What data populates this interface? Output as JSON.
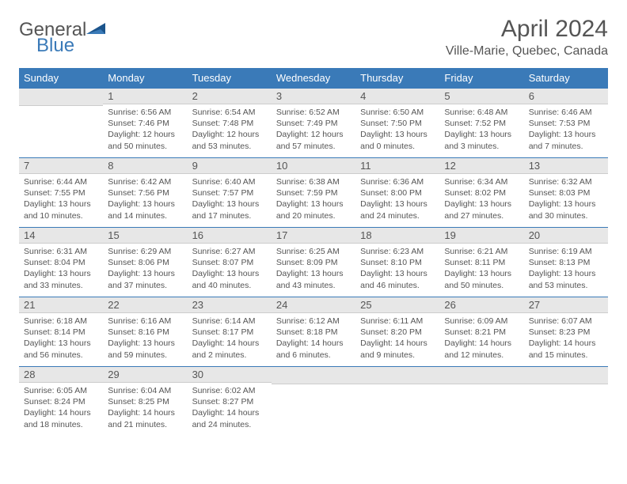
{
  "brand": {
    "general": "General",
    "blue": "Blue"
  },
  "title": "April 2024",
  "location": "Ville-Marie, Quebec, Canada",
  "weekdays": [
    "Sunday",
    "Monday",
    "Tuesday",
    "Wednesday",
    "Thursday",
    "Friday",
    "Saturday"
  ],
  "colors": {
    "header_bg": "#3a7ab8",
    "header_text": "#ffffff",
    "daynum_bg": "#e7e7e7",
    "row_border": "#3a7ab8",
    "text": "#555555"
  },
  "start_offset": 1,
  "days": [
    {
      "n": 1,
      "sunrise": "6:56 AM",
      "sunset": "7:46 PM",
      "dayH": 12,
      "dayM": 50
    },
    {
      "n": 2,
      "sunrise": "6:54 AM",
      "sunset": "7:48 PM",
      "dayH": 12,
      "dayM": 53
    },
    {
      "n": 3,
      "sunrise": "6:52 AM",
      "sunset": "7:49 PM",
      "dayH": 12,
      "dayM": 57
    },
    {
      "n": 4,
      "sunrise": "6:50 AM",
      "sunset": "7:50 PM",
      "dayH": 13,
      "dayM": 0
    },
    {
      "n": 5,
      "sunrise": "6:48 AM",
      "sunset": "7:52 PM",
      "dayH": 13,
      "dayM": 3
    },
    {
      "n": 6,
      "sunrise": "6:46 AM",
      "sunset": "7:53 PM",
      "dayH": 13,
      "dayM": 7
    },
    {
      "n": 7,
      "sunrise": "6:44 AM",
      "sunset": "7:55 PM",
      "dayH": 13,
      "dayM": 10
    },
    {
      "n": 8,
      "sunrise": "6:42 AM",
      "sunset": "7:56 PM",
      "dayH": 13,
      "dayM": 14
    },
    {
      "n": 9,
      "sunrise": "6:40 AM",
      "sunset": "7:57 PM",
      "dayH": 13,
      "dayM": 17
    },
    {
      "n": 10,
      "sunrise": "6:38 AM",
      "sunset": "7:59 PM",
      "dayH": 13,
      "dayM": 20
    },
    {
      "n": 11,
      "sunrise": "6:36 AM",
      "sunset": "8:00 PM",
      "dayH": 13,
      "dayM": 24
    },
    {
      "n": 12,
      "sunrise": "6:34 AM",
      "sunset": "8:02 PM",
      "dayH": 13,
      "dayM": 27
    },
    {
      "n": 13,
      "sunrise": "6:32 AM",
      "sunset": "8:03 PM",
      "dayH": 13,
      "dayM": 30
    },
    {
      "n": 14,
      "sunrise": "6:31 AM",
      "sunset": "8:04 PM",
      "dayH": 13,
      "dayM": 33
    },
    {
      "n": 15,
      "sunrise": "6:29 AM",
      "sunset": "8:06 PM",
      "dayH": 13,
      "dayM": 37
    },
    {
      "n": 16,
      "sunrise": "6:27 AM",
      "sunset": "8:07 PM",
      "dayH": 13,
      "dayM": 40
    },
    {
      "n": 17,
      "sunrise": "6:25 AM",
      "sunset": "8:09 PM",
      "dayH": 13,
      "dayM": 43
    },
    {
      "n": 18,
      "sunrise": "6:23 AM",
      "sunset": "8:10 PM",
      "dayH": 13,
      "dayM": 46
    },
    {
      "n": 19,
      "sunrise": "6:21 AM",
      "sunset": "8:11 PM",
      "dayH": 13,
      "dayM": 50
    },
    {
      "n": 20,
      "sunrise": "6:19 AM",
      "sunset": "8:13 PM",
      "dayH": 13,
      "dayM": 53
    },
    {
      "n": 21,
      "sunrise": "6:18 AM",
      "sunset": "8:14 PM",
      "dayH": 13,
      "dayM": 56
    },
    {
      "n": 22,
      "sunrise": "6:16 AM",
      "sunset": "8:16 PM",
      "dayH": 13,
      "dayM": 59
    },
    {
      "n": 23,
      "sunrise": "6:14 AM",
      "sunset": "8:17 PM",
      "dayH": 14,
      "dayM": 2
    },
    {
      "n": 24,
      "sunrise": "6:12 AM",
      "sunset": "8:18 PM",
      "dayH": 14,
      "dayM": 6
    },
    {
      "n": 25,
      "sunrise": "6:11 AM",
      "sunset": "8:20 PM",
      "dayH": 14,
      "dayM": 9
    },
    {
      "n": 26,
      "sunrise": "6:09 AM",
      "sunset": "8:21 PM",
      "dayH": 14,
      "dayM": 12
    },
    {
      "n": 27,
      "sunrise": "6:07 AM",
      "sunset": "8:23 PM",
      "dayH": 14,
      "dayM": 15
    },
    {
      "n": 28,
      "sunrise": "6:05 AM",
      "sunset": "8:24 PM",
      "dayH": 14,
      "dayM": 18
    },
    {
      "n": 29,
      "sunrise": "6:04 AM",
      "sunset": "8:25 PM",
      "dayH": 14,
      "dayM": 21
    },
    {
      "n": 30,
      "sunrise": "6:02 AM",
      "sunset": "8:27 PM",
      "dayH": 14,
      "dayM": 24
    }
  ],
  "labels": {
    "sunrise": "Sunrise:",
    "sunset": "Sunset:",
    "daylight": "Daylight:",
    "hours": "hours",
    "and": "and",
    "minutes": "minutes."
  }
}
